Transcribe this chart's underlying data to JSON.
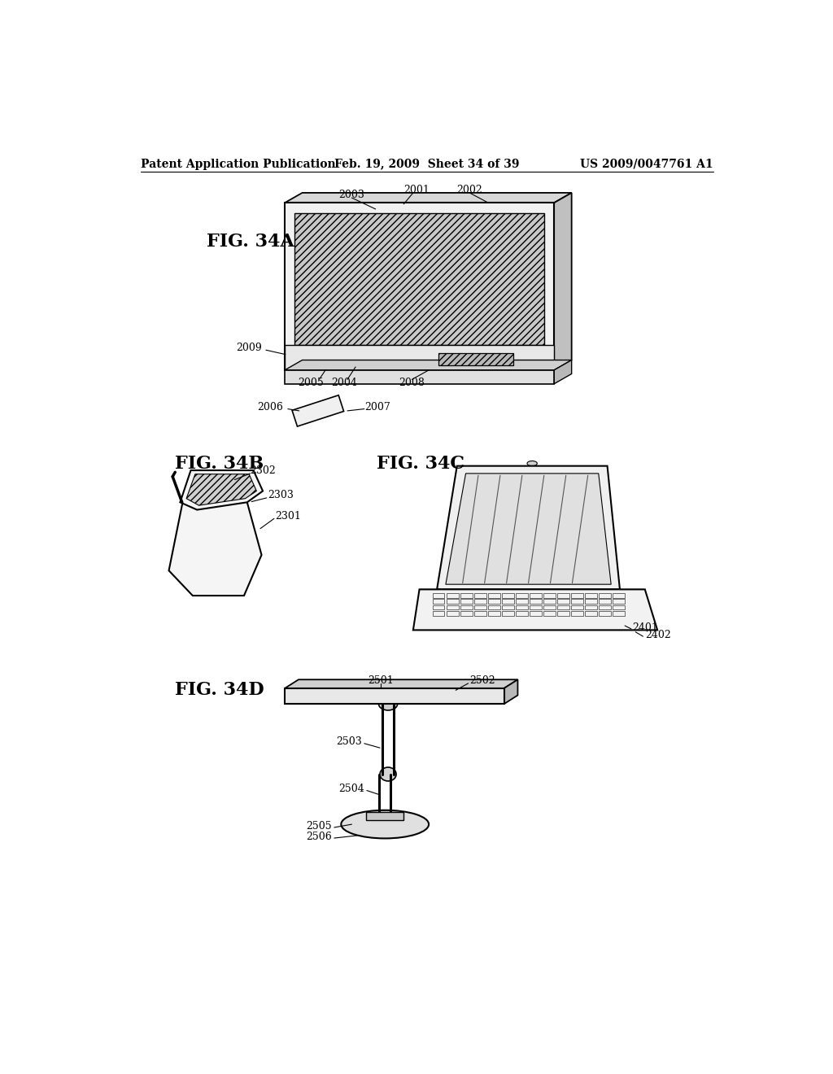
{
  "bg_color": "#ffffff",
  "header_left": "Patent Application Publication",
  "header_mid": "Feb. 19, 2009  Sheet 34 of 39",
  "header_right": "US 2009/0047761 A1",
  "fig_34a_label": "FIG. 34A",
  "fig_34b_label": "FIG. 34B",
  "fig_34c_label": "FIG. 34C",
  "fig_34d_label": "FIG. 34D",
  "label_fontsize": 16,
  "ref_fontsize": 9,
  "header_fontsize": 10
}
